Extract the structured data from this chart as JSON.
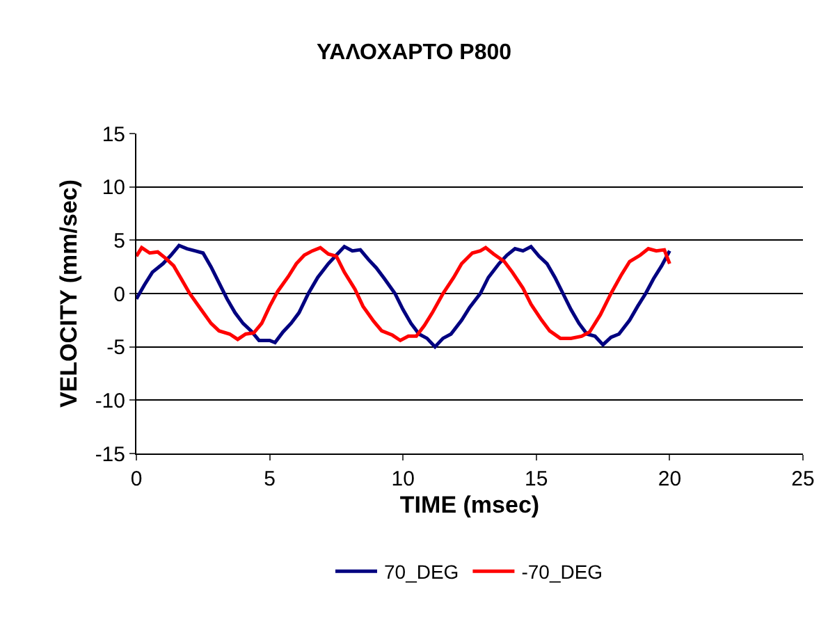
{
  "chart_data": {
    "type": "line",
    "title": "ΥΑΛΟΧΑΡΤΟ P800",
    "xlabel": "TIME (msec)",
    "ylabel": "VELOCITY (mm/sec)",
    "xlim": [
      0,
      25
    ],
    "xticks": [
      0,
      5,
      10,
      15,
      20,
      25
    ],
    "ylim": [
      -15,
      15
    ],
    "yticks": [
      -15,
      -10,
      -5,
      0,
      5,
      10,
      15
    ],
    "grid": "y",
    "legend": "bottom",
    "marker": "none",
    "line_style": "solid",
    "series": [
      {
        "name": "70_DEG",
        "color": "#000080",
        "x": [
          0,
          0.3,
          0.6,
          1.0,
          1.3,
          1.6,
          1.9,
          2.2,
          2.5,
          2.8,
          3.1,
          3.4,
          3.7,
          4.0,
          4.3,
          4.6,
          5.0,
          5.2,
          5.5,
          5.8,
          6.1,
          6.45,
          6.8,
          7.2,
          7.5,
          7.8,
          8.1,
          8.4,
          8.7,
          9.0,
          9.3,
          9.7,
          10.0,
          10.3,
          10.6,
          10.9,
          11.2,
          11.5,
          11.8,
          12.2,
          12.5,
          12.9,
          13.2,
          13.6,
          13.9,
          14.2,
          14.5,
          14.8,
          15.1,
          15.4,
          15.7,
          16.0,
          16.3,
          16.6,
          16.9,
          17.2,
          17.5,
          17.8,
          18.1,
          18.5,
          18.8,
          19.1,
          19.4,
          19.7,
          20.0
        ],
        "values": [
          -0.5,
          0.8,
          2.0,
          2.8,
          3.6,
          4.5,
          4.2,
          4.0,
          3.8,
          2.5,
          1.0,
          -0.5,
          -1.8,
          -2.8,
          -3.5,
          -4.4,
          -4.4,
          -4.6,
          -3.6,
          -2.8,
          -1.8,
          0,
          1.5,
          2.8,
          3.6,
          4.4,
          4.0,
          4.1,
          3.2,
          2.4,
          1.4,
          0,
          -1.5,
          -2.8,
          -3.8,
          -4.2,
          -5.0,
          -4.2,
          -3.8,
          -2.5,
          -1.3,
          0,
          1.5,
          2.8,
          3.6,
          4.2,
          4.0,
          4.4,
          3.5,
          2.8,
          1.5,
          0,
          -1.5,
          -2.8,
          -3.8,
          -4.0,
          -4.8,
          -4.1,
          -3.8,
          -2.5,
          -1.2,
          0,
          1.4,
          2.6,
          4.0
        ]
      },
      {
        "name": "-70_DEG",
        "color": "#ff0000",
        "x": [
          0,
          0.2,
          0.5,
          0.8,
          1.1,
          1.4,
          1.7,
          2.0,
          2.4,
          2.8,
          3.1,
          3.5,
          3.8,
          4.1,
          4.4,
          4.7,
          5.0,
          5.3,
          5.7,
          6.0,
          6.3,
          6.6,
          6.9,
          7.2,
          7.5,
          7.8,
          8.2,
          8.5,
          8.9,
          9.2,
          9.6,
          9.9,
          10.2,
          10.5,
          10.8,
          11.1,
          11.5,
          11.9,
          12.2,
          12.6,
          12.9,
          13.1,
          13.4,
          13.8,
          14.1,
          14.5,
          14.8,
          15.2,
          15.5,
          15.9,
          16.3,
          16.7,
          17.0,
          17.4,
          17.8,
          18.2,
          18.5,
          18.9,
          19.2,
          19.5,
          19.8,
          20.0
        ],
        "values": [
          3.5,
          4.3,
          3.8,
          3.9,
          3.3,
          2.6,
          1.3,
          0,
          -1.4,
          -2.8,
          -3.5,
          -3.8,
          -4.3,
          -3.8,
          -3.7,
          -2.8,
          -1.2,
          0.2,
          1.6,
          2.8,
          3.6,
          4.0,
          4.3,
          3.7,
          3.5,
          2.0,
          0.4,
          -1.2,
          -2.6,
          -3.5,
          -3.9,
          -4.4,
          -4.0,
          -4.0,
          -3.0,
          -1.8,
          0,
          1.5,
          2.8,
          3.8,
          4.0,
          4.3,
          3.7,
          3.0,
          2.0,
          0.5,
          -1.0,
          -2.5,
          -3.5,
          -4.2,
          -4.2,
          -4.0,
          -3.6,
          -2.0,
          0,
          1.8,
          3.0,
          3.6,
          4.2,
          4.0,
          4.1,
          2.8
        ]
      }
    ]
  }
}
